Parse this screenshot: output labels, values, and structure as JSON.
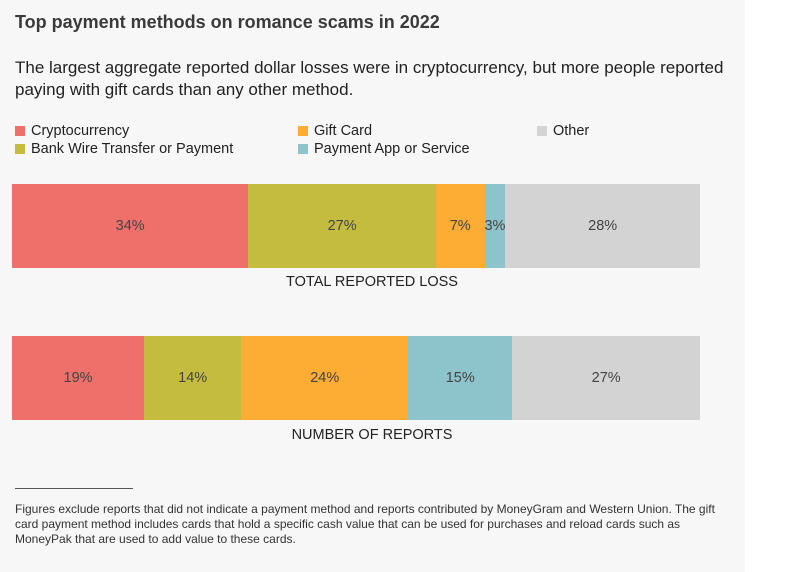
{
  "title": "Top payment methods on romance scams in 2022",
  "subtitle": "The largest aggregate reported dollar losses were in cryptocurrency, but more people reported paying with gift cards than any other method.",
  "legend": [
    {
      "label": "Cryptocurrency",
      "color": "#ef6f6a"
    },
    {
      "label": "Bank Wire Transfer or Payment",
      "color": "#c4bc3e"
    },
    {
      "label": "Gift Card",
      "color": "#fdac34"
    },
    {
      "label": "Payment App or Service",
      "color": "#8dc3ca"
    },
    {
      "label": "Other",
      "color": "#d3d3d3"
    }
  ],
  "chart_data": {
    "type": "bar",
    "stacked": true,
    "orientation": "horizontal",
    "series": [
      {
        "name": "Cryptocurrency",
        "color": "#ef6f6a",
        "values": [
          34,
          19
        ]
      },
      {
        "name": "Bank Wire Transfer or Payment",
        "color": "#c4bc3e",
        "values": [
          27,
          14
        ]
      },
      {
        "name": "Gift Card",
        "color": "#fdac34",
        "values": [
          7,
          24
        ]
      },
      {
        "name": "Payment App or Service",
        "color": "#8dc3ca",
        "values": [
          3,
          15
        ]
      },
      {
        "name": "Other",
        "color": "#d3d3d3",
        "values": [
          28,
          27
        ]
      }
    ],
    "categories": [
      "TOTAL REPORTED LOSS",
      "NUMBER OF REPORTS"
    ],
    "value_labels": [
      [
        "34%",
        "27%",
        "7%",
        "3%",
        "28%"
      ],
      [
        "19%",
        "14%",
        "24%",
        "15%",
        "27%"
      ]
    ],
    "legend_position": "top"
  },
  "footnote": "Figures exclude reports that did not indicate a payment method and reports contributed by MoneyGram and Western Union. The gift card payment method includes cards that hold a specific cash value that can be used for purchases and reload cards such as MoneyPak that are used to add value to these cards."
}
